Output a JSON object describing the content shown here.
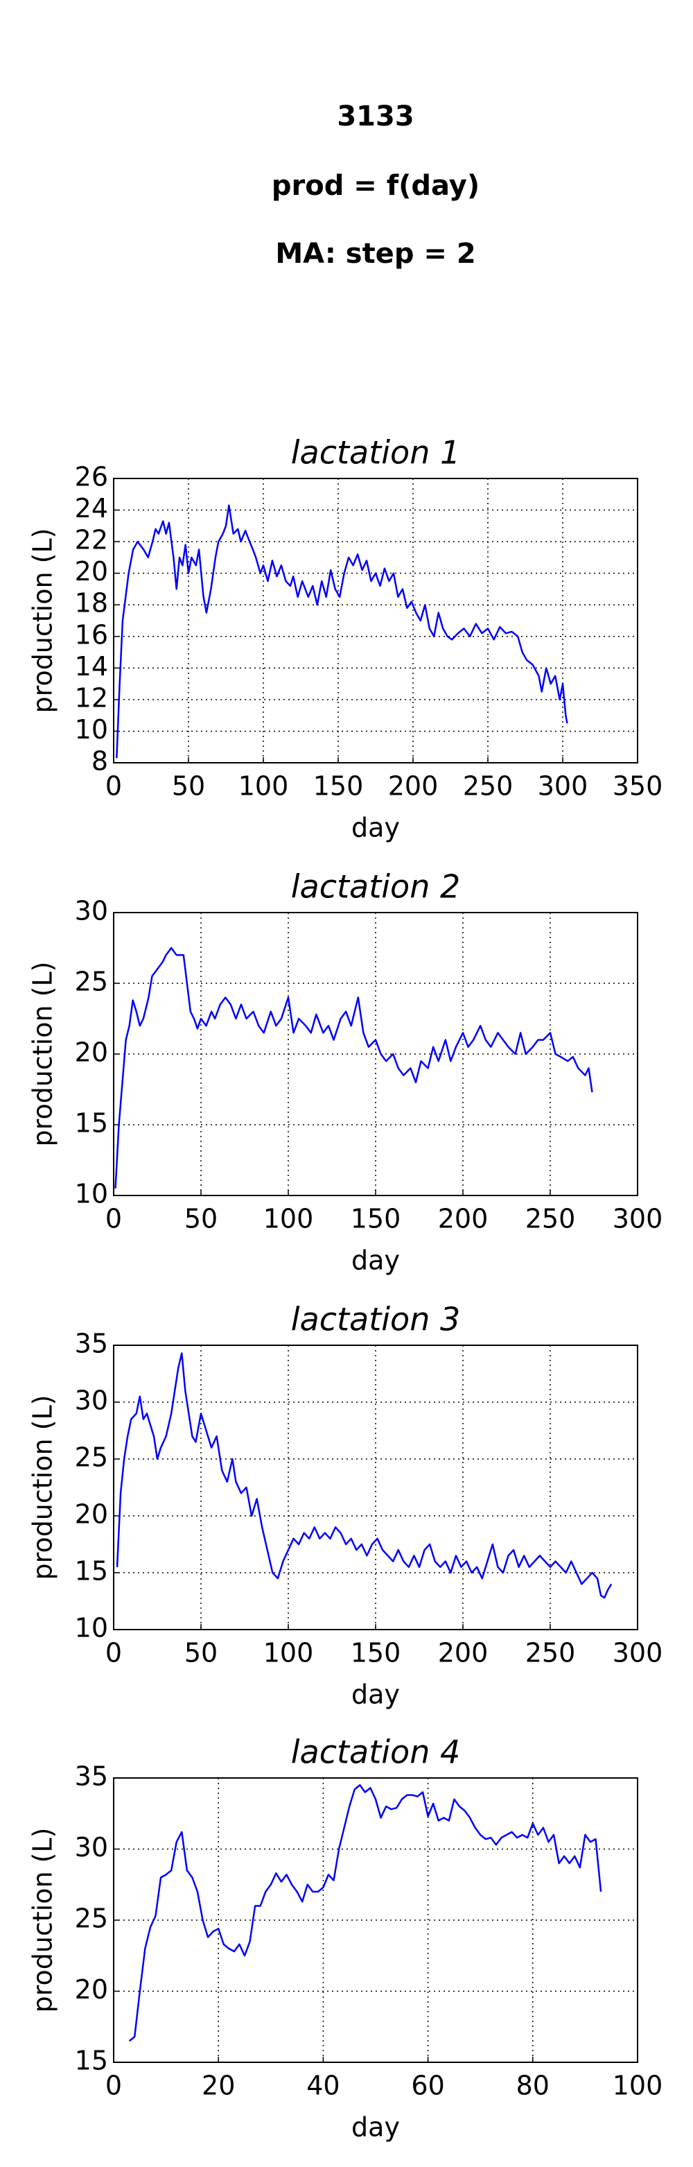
{
  "header": [
    "3133",
    "prod = f(day)",
    "MA: step = 2"
  ],
  "chart_data": [
    {
      "type": "line",
      "title": "lactation 1",
      "xlabel": "day",
      "ylabel": "production (L)",
      "color": "#0000ff",
      "grid": true,
      "xlim": [
        0,
        350
      ],
      "xticks": [
        0,
        50,
        100,
        150,
        200,
        250,
        300,
        350
      ],
      "ylim": [
        8,
        26
      ],
      "yticks": [
        8,
        10,
        12,
        14,
        16,
        18,
        20,
        22,
        24,
        26
      ],
      "x": [
        2,
        4,
        6,
        8,
        10,
        13,
        16,
        20,
        23,
        26,
        28,
        30,
        33,
        35,
        37,
        40,
        42,
        44,
        46,
        48,
        50,
        52,
        55,
        57,
        60,
        62,
        65,
        68,
        70,
        73,
        75,
        77,
        80,
        83,
        85,
        88,
        90,
        93,
        95,
        98,
        100,
        103,
        106,
        109,
        112,
        115,
        118,
        120,
        123,
        126,
        130,
        133,
        136,
        139,
        142,
        145,
        148,
        151,
        154,
        157,
        160,
        163,
        166,
        169,
        172,
        175,
        178,
        181,
        184,
        187,
        190,
        193,
        196,
        199,
        202,
        205,
        208,
        211,
        214,
        217,
        220,
        223,
        226,
        230,
        234,
        238,
        242,
        246,
        250,
        254,
        258,
        262,
        266,
        270,
        273,
        276,
        280,
        284,
        286,
        289,
        292,
        295,
        298,
        300,
        302,
        303
      ],
      "values": [
        8.3,
        13,
        17,
        18.5,
        20,
        21.5,
        22,
        21.5,
        21,
        22,
        22.8,
        22.5,
        23.3,
        22.5,
        23.2,
        21,
        19,
        21,
        20.5,
        21.8,
        20,
        21,
        20.5,
        21.5,
        18.5,
        17.5,
        19,
        21,
        22,
        22.5,
        23,
        24.3,
        22.5,
        22.8,
        22,
        22.7,
        22.2,
        21.5,
        21,
        20,
        20.5,
        19.5,
        20.8,
        19.8,
        20.5,
        19.5,
        19.2,
        19.8,
        18.5,
        19.5,
        18.5,
        19.2,
        18,
        19.5,
        18.5,
        20.2,
        19,
        18.5,
        20,
        21,
        20.5,
        21.2,
        20.2,
        20.8,
        19.5,
        20,
        19.2,
        20.3,
        19.5,
        20,
        18.5,
        19,
        17.8,
        18.2,
        17.5,
        17,
        18,
        16.5,
        16,
        17.5,
        16.5,
        16,
        15.8,
        16.2,
        16.5,
        16,
        16.8,
        16.2,
        16.5,
        15.8,
        16.6,
        16.2,
        16.3,
        16,
        15,
        14.5,
        14.2,
        13.5,
        12.5,
        14,
        13,
        13.5,
        12,
        13,
        11,
        10.5
      ]
    },
    {
      "type": "line",
      "title": "lactation 2",
      "xlabel": "day",
      "ylabel": "production (L)",
      "color": "#0000ff",
      "grid": true,
      "xlim": [
        0,
        300
      ],
      "xticks": [
        0,
        50,
        100,
        150,
        200,
        250,
        300
      ],
      "ylim": [
        10,
        30
      ],
      "yticks": [
        10,
        15,
        20,
        25,
        30
      ],
      "x": [
        1,
        3,
        5,
        7,
        9,
        11,
        13,
        15,
        17,
        20,
        22,
        25,
        28,
        30,
        33,
        36,
        40,
        42,
        44,
        46,
        48,
        50,
        53,
        56,
        58,
        61,
        64,
        67,
        70,
        73,
        76,
        80,
        83,
        86,
        90,
        93,
        96,
        100,
        103,
        106,
        110,
        113,
        116,
        120,
        123,
        126,
        130,
        133,
        136,
        140,
        143,
        146,
        150,
        153,
        156,
        160,
        163,
        166,
        170,
        173,
        176,
        180,
        183,
        186,
        190,
        193,
        196,
        200,
        203,
        206,
        210,
        213,
        216,
        220,
        223,
        226,
        230,
        233,
        236,
        240,
        243,
        246,
        250,
        253,
        256,
        260,
        263,
        266,
        270,
        272,
        274
      ],
      "values": [
        10.5,
        15,
        18,
        21,
        22,
        23.8,
        23,
        22,
        22.5,
        24,
        25.5,
        26,
        26.5,
        27,
        27.5,
        27,
        27,
        25,
        23,
        22.5,
        21.8,
        22.5,
        22,
        23,
        22.5,
        23.5,
        24,
        23.5,
        22.5,
        23.5,
        22.5,
        23,
        22,
        21.5,
        23,
        22,
        22.5,
        24,
        21.5,
        22.5,
        22,
        21.5,
        22.8,
        21.5,
        22,
        21,
        22.5,
        23,
        22,
        24,
        21.5,
        20.5,
        21,
        20,
        19.5,
        20,
        19,
        18.5,
        19,
        18,
        19.5,
        19,
        20.5,
        19.5,
        21,
        19.5,
        20.5,
        21.5,
        20.5,
        21,
        22,
        21,
        20.5,
        21.5,
        21,
        20.5,
        20,
        21.5,
        20,
        20.5,
        21,
        21,
        21.5,
        20,
        19.8,
        19.5,
        19.8,
        19,
        18.5,
        19,
        17.3
      ]
    },
    {
      "type": "line",
      "title": "lactation 3",
      "xlabel": "day",
      "ylabel": "production (L)",
      "color": "#0000ff",
      "grid": true,
      "xlim": [
        0,
        300
      ],
      "xticks": [
        0,
        50,
        100,
        150,
        200,
        250,
        300
      ],
      "ylim": [
        10,
        35
      ],
      "yticks": [
        10,
        15,
        20,
        25,
        30,
        35
      ],
      "x": [
        2,
        4,
        6,
        8,
        10,
        13,
        15,
        17,
        19,
        21,
        23,
        25,
        27,
        30,
        33,
        35,
        37,
        39,
        41,
        43,
        45,
        47,
        50,
        53,
        56,
        59,
        62,
        65,
        68,
        70,
        73,
        76,
        79,
        82,
        85,
        88,
        91,
        94,
        97,
        100,
        103,
        106,
        109,
        112,
        115,
        118,
        121,
        124,
        127,
        130,
        133,
        136,
        139,
        142,
        145,
        148,
        151,
        154,
        157,
        160,
        163,
        166,
        169,
        172,
        175,
        178,
        181,
        184,
        187,
        190,
        193,
        196,
        199,
        202,
        205,
        208,
        211,
        214,
        217,
        220,
        223,
        226,
        229,
        232,
        235,
        238,
        241,
        244,
        247,
        250,
        253,
        256,
        259,
        262,
        265,
        268,
        271,
        274,
        277,
        279,
        281,
        283,
        285
      ],
      "values": [
        15.5,
        22,
        25,
        27,
        28.5,
        29,
        30.5,
        28.5,
        29,
        28,
        27,
        25,
        26,
        27,
        29,
        31,
        33,
        34.3,
        31,
        29,
        27,
        26.5,
        29,
        27.5,
        26,
        27,
        24,
        23,
        25,
        23,
        22,
        22.5,
        20,
        21.5,
        19,
        17,
        15,
        14.5,
        16,
        17,
        18,
        17.5,
        18.5,
        18,
        19,
        18,
        18.5,
        18,
        19,
        18.5,
        17.5,
        18,
        17,
        17.5,
        16.5,
        17.5,
        18,
        17,
        16.5,
        16,
        17,
        16,
        15.5,
        16.5,
        15.5,
        17,
        17.5,
        16,
        15.5,
        16,
        15,
        16.5,
        15.5,
        16,
        15,
        15.5,
        14.5,
        16,
        17.5,
        15.5,
        15,
        16.5,
        17,
        15.5,
        16.5,
        15.5,
        16,
        16.5,
        16,
        15.5,
        16,
        15.5,
        15,
        16,
        15,
        14,
        14.5,
        15,
        14.5,
        13,
        12.8,
        13.5,
        14
      ]
    },
    {
      "type": "line",
      "title": "lactation 4",
      "xlabel": "day",
      "ylabel": "production (L)",
      "color": "#0000ff",
      "grid": true,
      "xlim": [
        0,
        100
      ],
      "xticks": [
        0,
        20,
        40,
        60,
        80,
        100
      ],
      "ylim": [
        15,
        35
      ],
      "yticks": [
        15,
        20,
        25,
        30,
        35
      ],
      "x": [
        3,
        4,
        5,
        6,
        7,
        8,
        9,
        10,
        11,
        12,
        13,
        14,
        15,
        16,
        17,
        18,
        19,
        20,
        21,
        22,
        23,
        24,
        25,
        26,
        27,
        28,
        29,
        30,
        31,
        32,
        33,
        34,
        35,
        36,
        37,
        38,
        39,
        40,
        41,
        42,
        43,
        44,
        45,
        46,
        47,
        48,
        49,
        50,
        51,
        52,
        53,
        54,
        55,
        56,
        57,
        58,
        59,
        60,
        61,
        62,
        63,
        64,
        65,
        66,
        67,
        68,
        69,
        70,
        71,
        72,
        73,
        74,
        75,
        76,
        77,
        78,
        79,
        80,
        81,
        82,
        83,
        84,
        85,
        86,
        87,
        88,
        89,
        90,
        91,
        92,
        93
      ],
      "values": [
        16.5,
        16.8,
        20,
        23,
        24.5,
        25.3,
        28,
        28.2,
        28.5,
        30.5,
        31.2,
        28.5,
        28,
        27,
        25,
        23.8,
        24.2,
        24.4,
        23.3,
        23,
        22.8,
        23.3,
        22.5,
        23.5,
        26,
        26,
        27,
        27.5,
        28.3,
        27.7,
        28.2,
        27.5,
        27,
        26.3,
        27.5,
        27,
        27,
        27.3,
        28.2,
        27.8,
        30,
        31.5,
        33,
        34.2,
        34.5,
        34,
        34.3,
        33.5,
        32.2,
        33,
        32.8,
        32.9,
        33.5,
        33.8,
        33.8,
        33.7,
        34,
        32.3,
        33.2,
        32,
        32.2,
        32,
        33.5,
        33,
        32.7,
        32.2,
        31.5,
        31,
        30.7,
        30.8,
        30.3,
        30.8,
        31,
        31.2,
        30.8,
        31,
        30.8,
        31.8,
        31,
        31.5,
        30.5,
        31,
        29,
        29.5,
        29,
        29.5,
        28.7,
        31,
        30.5,
        30.7,
        27
      ]
    }
  ]
}
